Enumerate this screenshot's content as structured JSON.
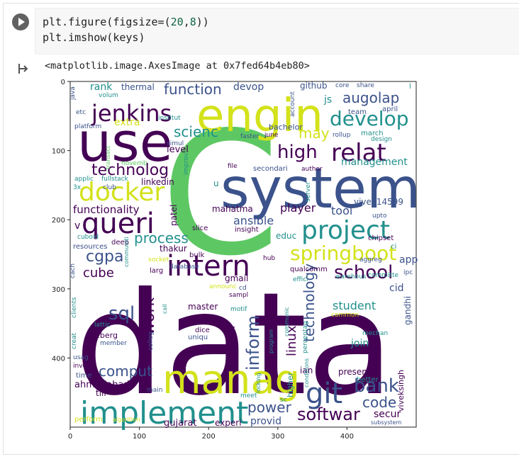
{
  "code": {
    "line1_prefix": "plt.figure(figsize=(",
    "line1_n1": "20",
    "line1_comma": ",",
    "line1_n2": "8",
    "line1_suffix": "))",
    "line2": "plt.imshow(keys)"
  },
  "output": {
    "text": "<matplotlib.image.AxesImage at 0x7fed64b4eb80>"
  },
  "icons": {
    "run": "play-icon",
    "output": "output-arrow-icon"
  },
  "colors": {
    "dark_purple": "#440154",
    "indigo": "#3b528b",
    "teal": "#21908d",
    "green": "#5dc863",
    "yellow": "#d3e21b"
  },
  "chart_data": {
    "type": "image",
    "xticks": [
      "0",
      "100",
      "200",
      "300",
      "400"
    ],
    "yticks": [
      "0",
      "100",
      "200",
      "300",
      "400"
    ],
    "xlim": [
      0,
      500
    ],
    "ylim": [
      500,
      0
    ],
    "words": [
      "data",
      "system",
      "C",
      "engin",
      "use",
      "manag",
      "implement",
      "docker",
      "jenkins",
      "queri",
      "project",
      "intern",
      "relat",
      "develop",
      "springboot",
      "git",
      "school",
      "technolog",
      "inform",
      "high",
      "bank",
      "cgpa",
      "cube",
      "sql",
      "work",
      "comput",
      "power",
      "softwar",
      "code",
      "function",
      "process",
      "scienc",
      "augolap",
      "may",
      "technology",
      "linux",
      "student",
      "management",
      "ansible",
      "player",
      "tool",
      "vivek14599",
      "functionality",
      "mahatma",
      "level",
      "linkedin",
      "extra",
      "rank",
      "thermal",
      "devop",
      "github",
      "js",
      "team",
      "april",
      "march",
      "design",
      "faster",
      "rollup",
      "june",
      "bachelor",
      "share",
      "core",
      "account",
      "simul",
      "institut",
      "transact",
      "novemb",
      "platform",
      "etc",
      "volum",
      "java",
      "applic",
      "fullstack",
      "club",
      "improv",
      "author",
      "file",
      "secondari",
      "server",
      "upto",
      "chipset",
      "educ",
      "insight",
      "slice",
      "patel",
      "resources",
      "deep",
      "cuboid",
      "thakur",
      "socket",
      "bulk",
      "larg",
      "database",
      "announc",
      "gmail",
      "cd",
      "hub",
      "qualcomm",
      "aggreg",
      "app",
      "ipc",
      "committe",
      "warehous",
      "effici",
      "cid",
      "cach",
      "communiti",
      "percentag",
      "program",
      "gandhi",
      "master",
      "sampl",
      "motif",
      "communic",
      "common",
      "mechan",
      "dice",
      "uniqu",
      "iceberg",
      "member",
      "lattic",
      "colleg",
      "creat",
      "clients",
      "angular",
      "usag",
      "involv",
      "time",
      "ahmedabad",
      "till",
      "perform",
      "gujarat",
      "experi",
      "provid",
      "present",
      "join",
      "viveksingh",
      "better",
      "secur",
      "subsystem",
      "main",
      "meet",
      "locking",
      "higher",
      "ian",
      "conditions",
      "sc",
      "ci",
      "u",
      "3x",
      "l",
      "v",
      "cail",
      "algorithm"
    ]
  }
}
